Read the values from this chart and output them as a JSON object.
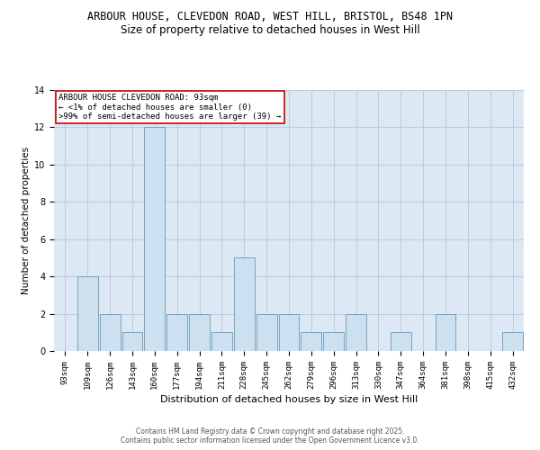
{
  "title": "ARBOUR HOUSE, CLEVEDON ROAD, WEST HILL, BRISTOL, BS48 1PN",
  "subtitle": "Size of property relative to detached houses in West Hill",
  "xlabel": "Distribution of detached houses by size in West Hill",
  "ylabel": "Number of detached properties",
  "categories": [
    "93sqm",
    "109sqm",
    "126sqm",
    "143sqm",
    "160sqm",
    "177sqm",
    "194sqm",
    "211sqm",
    "228sqm",
    "245sqm",
    "262sqm",
    "279sqm",
    "296sqm",
    "313sqm",
    "330sqm",
    "347sqm",
    "364sqm",
    "381sqm",
    "398sqm",
    "415sqm",
    "432sqm"
  ],
  "values": [
    0,
    4,
    2,
    1,
    12,
    2,
    2,
    1,
    5,
    2,
    2,
    1,
    1,
    2,
    0,
    1,
    0,
    2,
    0,
    0,
    1
  ],
  "bar_color": "#cce0f0",
  "bar_edge_color": "#6699bb",
  "annotation_text": "ARBOUR HOUSE CLEVEDON ROAD: 93sqm\n← <1% of detached houses are smaller (0)\n>99% of semi-detached houses are larger (39) →",
  "annotation_box_color": "#ffffff",
  "annotation_box_edge_color": "#cc0000",
  "ylim": [
    0,
    14
  ],
  "yticks": [
    0,
    2,
    4,
    6,
    8,
    10,
    12,
    14
  ],
  "grid_color": "#bbccdd",
  "background_color": "#dde8f5",
  "footer_text": "Contains HM Land Registry data © Crown copyright and database right 2025.\nContains public sector information licensed under the Open Government Licence v3.0.",
  "title_fontsize": 8.5,
  "subtitle_fontsize": 8.5,
  "axis_label_fontsize": 7.5,
  "tick_fontsize": 6.5,
  "annotation_fontsize": 6.5,
  "footer_fontsize": 5.5
}
